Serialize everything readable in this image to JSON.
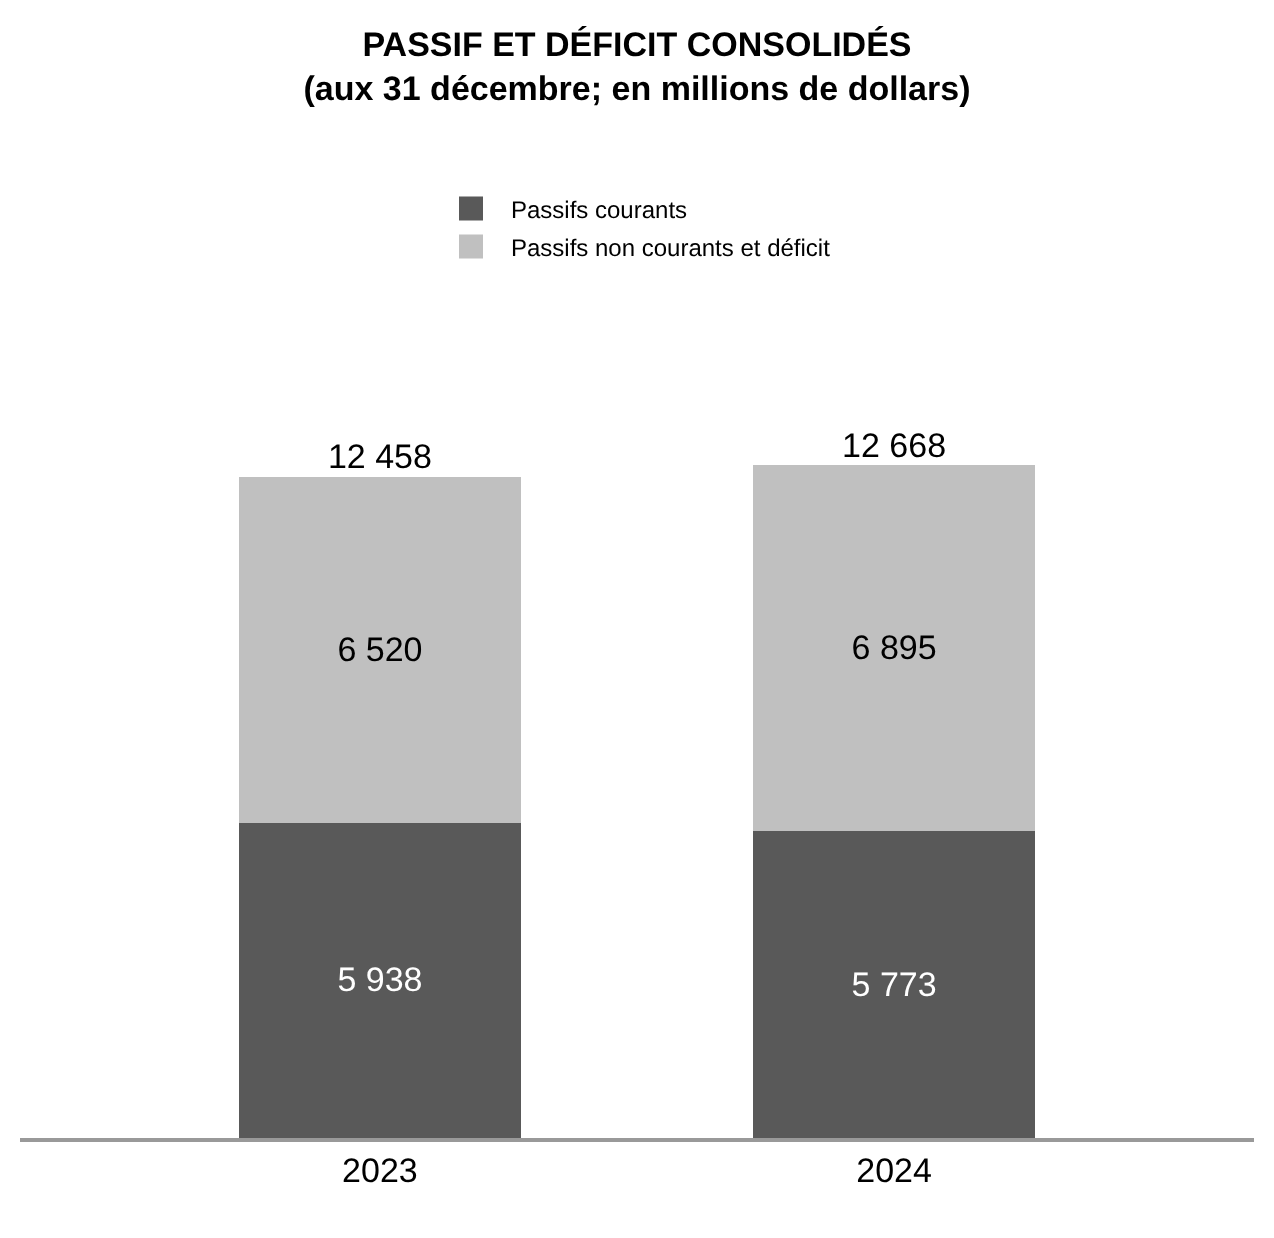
{
  "chart_data": {
    "type": "bar",
    "title": "PASSIF ET DÉFICIT CONSOLIDÉS\n(aux 31 décembre; en millions de dollars)",
    "categories": [
      "2023",
      "2024"
    ],
    "stacked": true,
    "series": [
      {
        "name": "Passifs courants",
        "color": "#595959",
        "values": [
          5938,
          5773
        ],
        "value_labels": [
          "5 938",
          "5 773"
        ]
      },
      {
        "name": "Passifs non courants et déficit",
        "color": "#c0c0c0",
        "values": [
          6520,
          6895
        ],
        "value_labels": [
          "6 520",
          "6 895"
        ]
      }
    ],
    "totals": [
      "12 458",
      "12 668"
    ],
    "legend": "top"
  }
}
